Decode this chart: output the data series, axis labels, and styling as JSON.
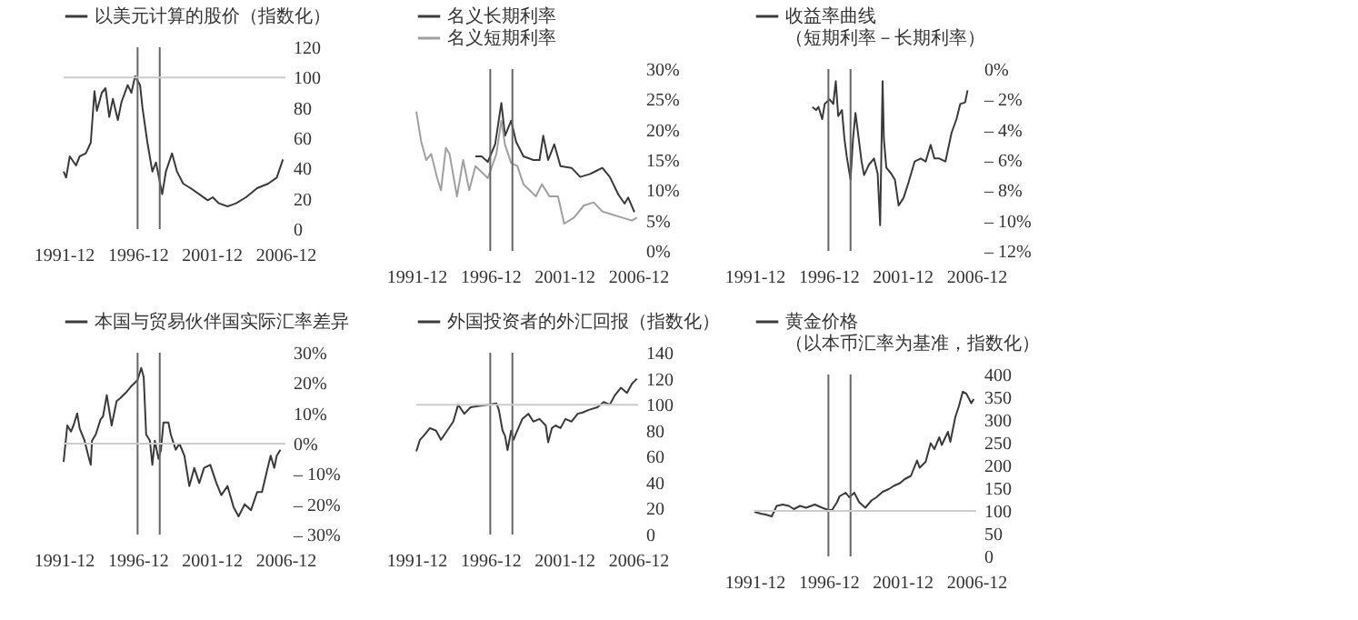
{
  "chart_data": [
    {
      "type": "line",
      "series": [
        {
          "name": "以美元计算的股价（指数化）",
          "color": "#3a3a3a",
          "x": [
            "1991-12",
            "1992-02",
            "1992-05",
            "1992-10",
            "1993-01",
            "1993-06",
            "1993-10",
            "1994-01",
            "1994-03",
            "1994-07",
            "1994-10",
            "1995-01",
            "1995-04",
            "1995-08",
            "1995-11",
            "1996-04",
            "1996-07",
            "1996-10",
            "1997-02",
            "1997-04",
            "1997-08",
            "1997-12",
            "1998-03",
            "1998-08",
            "1998-11",
            "1999-04",
            "1999-08",
            "2000-01",
            "2000-07",
            "2001-02",
            "2001-09",
            "2002-01",
            "2002-06",
            "2003-01",
            "2003-08",
            "2004-04",
            "2005-01",
            "2005-10",
            "2006-05",
            "2006-10"
          ],
          "values": [
            38,
            34,
            48,
            42,
            48,
            50,
            57,
            91,
            78,
            90,
            93,
            74,
            86,
            72,
            84,
            95,
            90,
            101,
            95,
            80,
            57,
            38,
            44,
            23,
            38,
            50,
            38,
            30,
            27,
            23,
            19,
            21,
            17,
            15,
            17,
            21,
            27,
            30,
            34,
            46
          ]
        }
      ],
      "xlim": [
        "1991-12",
        "2006-12"
      ],
      "xticks": [
        "1991-12",
        "1996-12",
        "2001-12",
        "2006-12"
      ],
      "ylim": [
        0,
        120
      ],
      "yticks": [
        0,
        20,
        40,
        60,
        80,
        100,
        120
      ],
      "legend": "top",
      "ref_lines": [
        {
          "axis": "x",
          "value": "1996-12",
          "color": "#666666"
        },
        {
          "axis": "x",
          "value": "1998-06",
          "color": "#666666"
        },
        {
          "axis": "y",
          "value": 100,
          "color": "#cccccc"
        }
      ]
    },
    {
      "type": "line",
      "series": [
        {
          "name": "名义长期利率",
          "color": "#3a3a3a",
          "x": [
            "1995-12",
            "1996-05",
            "1996-10",
            "1997-04",
            "1997-09",
            "1997-12",
            "1998-05",
            "1998-09",
            "1999-03",
            "1999-11",
            "2000-04",
            "2000-07",
            "2000-11",
            "2001-04",
            "2001-09",
            "2002-06",
            "2003-01",
            "2003-09",
            "2004-02",
            "2004-07",
            "2005-01",
            "2005-08",
            "2006-01",
            "2006-04",
            "2006-09"
          ],
          "values": [
            15.6,
            15.6,
            14.7,
            17.6,
            24.4,
            19,
            21.5,
            18,
            15.6,
            15,
            15,
            19,
            15,
            17.6,
            14,
            13.7,
            12.2,
            12.7,
            13.2,
            13.7,
            12.2,
            9.3,
            7.8,
            8.8,
            6.4
          ]
        },
        {
          "name": "名义短期利率",
          "color": "#a0a0a0",
          "x": [
            "1991-12",
            "1992-04",
            "1992-08",
            "1992-12",
            "1993-05",
            "1993-08",
            "1993-12",
            "1994-03",
            "1994-09",
            "1995-02",
            "1995-07",
            "1995-12",
            "1996-05",
            "1996-10",
            "1997-05",
            "1997-09",
            "1997-12",
            "1998-05",
            "1998-10",
            "1999-03",
            "1999-08",
            "2000-01",
            "2000-06",
            "2000-12",
            "2001-07",
            "2001-12",
            "2002-08",
            "2003-04",
            "2003-12",
            "2004-07",
            "2005-03",
            "2005-11",
            "2006-07",
            "2006-11"
          ],
          "values": [
            23,
            18,
            15,
            16,
            12,
            10,
            17,
            16,
            9,
            15,
            10,
            14,
            13,
            12,
            16,
            21.5,
            17.5,
            14.5,
            14,
            11,
            10,
            9,
            11,
            9,
            9,
            4.5,
            5.5,
            7.5,
            8,
            6.5,
            6,
            5.5,
            5,
            5.5
          ]
        }
      ],
      "xlim": [
        "1991-12",
        "2006-12"
      ],
      "xticks": [
        "1991-12",
        "1996-12",
        "2001-12",
        "2006-12"
      ],
      "ylim": [
        0,
        30
      ],
      "yticks": [
        {
          "value": 0,
          "label": "0%"
        },
        {
          "value": 5,
          "label": "5%"
        },
        {
          "value": 10,
          "label": "10%"
        },
        {
          "value": 15,
          "label": "15%"
        },
        {
          "value": 20,
          "label": "20%"
        },
        {
          "value": 25,
          "label": "25%"
        },
        {
          "value": 30,
          "label": "30%"
        }
      ],
      "legend": "top left",
      "ref_lines": [
        {
          "axis": "x",
          "value": "1996-12",
          "color": "#666666"
        },
        {
          "axis": "x",
          "value": "1998-06",
          "color": "#666666"
        }
      ]
    },
    {
      "type": "line",
      "series": [
        {
          "name": "收益率曲线（短期利率－长期利率）",
          "color": "#3a3a3a",
          "x": [
            "1995-11",
            "1996-02",
            "1996-04",
            "1996-07",
            "1996-09",
            "1997-01",
            "1997-04",
            "1997-06",
            "1997-08",
            "1997-11",
            "1998-01",
            "1998-03",
            "1998-06",
            "1998-08",
            "1998-10",
            "1999-03",
            "1999-05",
            "1999-09",
            "2000-01",
            "2000-04",
            "2000-06",
            "2000-08",
            "2000-09",
            "2000-11",
            "2001-03",
            "2001-06",
            "2001-09",
            "2002-01",
            "2002-05",
            "2002-10",
            "2003-03",
            "2003-07",
            "2003-11",
            "2004-02",
            "2004-06",
            "2004-11",
            "2005-04",
            "2005-08",
            "2005-11",
            "2006-03",
            "2006-05"
          ],
          "values": [
            -2.5,
            -2.7,
            -2.5,
            -3.3,
            -2.3,
            -2,
            -2.3,
            -0.8,
            -3.1,
            -2.7,
            -4.6,
            -5.8,
            -7.3,
            -4.6,
            -2.9,
            -6.1,
            -7,
            -6.3,
            -5.9,
            -6.9,
            -10.3,
            -0.8,
            -4.6,
            -6.5,
            -6.9,
            -7.3,
            -9,
            -8.5,
            -7.5,
            -6.1,
            -5.9,
            -6.1,
            -5,
            -5.9,
            -5.9,
            -6.1,
            -4.2,
            -3.3,
            -2.3,
            -2.2,
            -1.4
          ]
        }
      ],
      "xlim": [
        "1991-12",
        "2006-12"
      ],
      "xticks": [
        "1991-12",
        "1996-12",
        "2001-12",
        "2006-12"
      ],
      "ylim": [
        -12,
        0
      ],
      "yticks": [
        {
          "value": 0,
          "label": "0%"
        },
        {
          "value": -2,
          "label": "– 2%"
        },
        {
          "value": -4,
          "label": "– 4%"
        },
        {
          "value": -6,
          "label": "– 6%"
        },
        {
          "value": -8,
          "label": "– 8%"
        },
        {
          "value": -10,
          "label": "– 10%"
        },
        {
          "value": -12,
          "label": "– 12%"
        }
      ],
      "legend": "top left",
      "ref_lines": [
        {
          "axis": "x",
          "value": "1996-12",
          "color": "#666666"
        },
        {
          "axis": "x",
          "value": "1998-06",
          "color": "#666666"
        }
      ]
    },
    {
      "type": "line",
      "series": [
        {
          "name": "本国与贸易伙伴国实际汇率差异",
          "color": "#3a3a3a",
          "x": [
            "1991-12",
            "1992-03",
            "1992-06",
            "1992-08",
            "1992-11",
            "1993-01",
            "1993-05",
            "1993-08",
            "1993-10",
            "1993-11",
            "1994-02",
            "1994-06",
            "1994-08",
            "1994-11",
            "1995-03",
            "1995-07",
            "1995-10",
            "1996-03",
            "1996-07",
            "1996-12",
            "1997-03",
            "1997-05",
            "1997-07",
            "1997-10",
            "1997-12",
            "1998-02",
            "1998-05",
            "1998-07",
            "1998-09",
            "1999-01",
            "1999-03",
            "1999-07",
            "1999-10",
            "2000-02",
            "2000-06",
            "2000-10",
            "2001-02",
            "2001-06",
            "2001-11",
            "2002-04",
            "2002-08",
            "2003-01",
            "2003-06",
            "2003-10",
            "2004-03",
            "2004-08",
            "2005-01",
            "2005-05",
            "2005-09",
            "2005-12",
            "2006-03",
            "2006-05",
            "2006-08"
          ],
          "values": [
            -6,
            6,
            4,
            6,
            10,
            5,
            1,
            -4,
            -7,
            1,
            3,
            8,
            9,
            16,
            6,
            14,
            15,
            17,
            19,
            21,
            25,
            22,
            3,
            1,
            -7,
            1,
            -5,
            -2,
            7,
            7,
            3,
            -2,
            0,
            -4,
            -14,
            -8,
            -13,
            -8,
            -7,
            -13,
            -17,
            -14,
            -21,
            -24,
            -20,
            -22,
            -16,
            -16,
            -9,
            -4,
            -8,
            -4,
            -2
          ]
        }
      ],
      "xlim": [
        "1991-12",
        "2006-12"
      ],
      "xticks": [
        "1991-12",
        "1996-12",
        "2001-12",
        "2006-12"
      ],
      "ylim": [
        -30,
        30
      ],
      "yticks": [
        {
          "value": 30,
          "label": "30%"
        },
        {
          "value": 20,
          "label": "20%"
        },
        {
          "value": 10,
          "label": "10%"
        },
        {
          "value": 0,
          "label": "0%"
        },
        {
          "value": -10,
          "label": "– 10%"
        },
        {
          "value": -20,
          "label": "– 20%"
        },
        {
          "value": -30,
          "label": "– 30%"
        }
      ],
      "legend": "top",
      "ref_lines": [
        {
          "axis": "x",
          "value": "1996-12",
          "color": "#666666"
        },
        {
          "axis": "x",
          "value": "1998-06",
          "color": "#666666"
        },
        {
          "axis": "y",
          "value": 0,
          "color": "#cccccc"
        }
      ]
    },
    {
      "type": "line",
      "series": [
        {
          "name": "外国投资者的外汇回报（指数化）",
          "color": "#3a3a3a",
          "x": [
            "1991-12",
            "1992-03",
            "1992-06",
            "1992-11",
            "1993-04",
            "1993-08",
            "1994-01",
            "1994-06",
            "1994-10",
            "1995-03",
            "1995-08",
            "1996-03",
            "1996-10",
            "1997-05",
            "1997-07",
            "1997-10",
            "1997-12",
            "1998-02",
            "1998-05",
            "1998-07",
            "1998-09",
            "1999-02",
            "1999-07",
            "1999-11",
            "2000-04",
            "2000-09",
            "2000-11",
            "2001-02",
            "2001-05",
            "2001-09",
            "2002-01",
            "2002-06",
            "2002-11",
            "2003-03",
            "2003-08",
            "2004-03",
            "2004-08",
            "2005-01",
            "2005-05",
            "2005-10",
            "2006-03",
            "2006-07",
            "2006-11"
          ],
          "values": [
            64,
            73,
            76,
            82,
            80,
            73,
            80,
            87,
            100,
            93,
            98,
            99,
            100,
            101,
            96,
            80,
            76,
            65,
            80,
            73,
            78,
            89,
            93,
            87,
            89,
            84,
            71,
            82,
            84,
            82,
            89,
            87,
            93,
            94,
            96,
            98,
            102,
            100,
            107,
            113,
            109,
            116,
            120
          ]
        }
      ],
      "xlim": [
        "1991-12",
        "2006-12"
      ],
      "xticks": [
        "1991-12",
        "1996-12",
        "2001-12",
        "2006-12"
      ],
      "ylim": [
        0,
        140
      ],
      "yticks": [
        0,
        20,
        40,
        60,
        80,
        100,
        120,
        140
      ],
      "legend": "top",
      "ref_lines": [
        {
          "axis": "x",
          "value": "1996-12",
          "color": "#666666"
        },
        {
          "axis": "x",
          "value": "1998-06",
          "color": "#666666"
        },
        {
          "axis": "y",
          "value": 100,
          "color": "#cccccc"
        }
      ]
    },
    {
      "type": "line",
      "series": [
        {
          "name": "黄金价格（以本币汇率为基准，指数化）",
          "color": "#3a3a3a",
          "x": [
            "1991-12",
            "1992-05",
            "1992-09",
            "1993-02",
            "1993-06",
            "1993-11",
            "1994-04",
            "1994-08",
            "1995-01",
            "1995-06",
            "1996-01",
            "1996-07",
            "1996-12",
            "1997-03",
            "1997-07",
            "1997-09",
            "1998-02",
            "1998-05",
            "1998-09",
            "1999-01",
            "1999-06",
            "1999-11",
            "2000-03",
            "2000-08",
            "2001-01",
            "2001-05",
            "2001-10",
            "2002-02",
            "2002-07",
            "2002-12",
            "2003-02",
            "2003-07",
            "2003-11",
            "2004-02",
            "2004-06",
            "2004-08",
            "2005-01",
            "2005-03",
            "2005-07",
            "2005-10",
            "2006-01",
            "2006-04",
            "2006-08",
            "2006-10"
          ],
          "values": [
            98,
            94,
            92,
            88,
            111,
            114,
            111,
            104,
            111,
            107,
            114,
            107,
            102,
            102,
            119,
            132,
            140,
            130,
            140,
            119,
            107,
            123,
            130,
            142,
            148,
            155,
            161,
            170,
            177,
            211,
            195,
            208,
            249,
            236,
            262,
            245,
            274,
            252,
            306,
            331,
            362,
            358,
            337,
            346
          ]
        }
      ],
      "xlim": [
        "1991-12",
        "2006-12"
      ],
      "xticks": [
        "1991-12",
        "1996-12",
        "2001-12",
        "2006-12"
      ],
      "ylim": [
        0,
        400
      ],
      "yticks": [
        0,
        50,
        100,
        150,
        200,
        250,
        300,
        350,
        400
      ],
      "legend": "top",
      "ref_lines": [
        {
          "axis": "x",
          "value": "1996-12",
          "color": "#666666"
        },
        {
          "axis": "x",
          "value": "1998-06",
          "color": "#666666"
        },
        {
          "axis": "y",
          "value": 100,
          "color": "#cccccc"
        }
      ]
    }
  ]
}
